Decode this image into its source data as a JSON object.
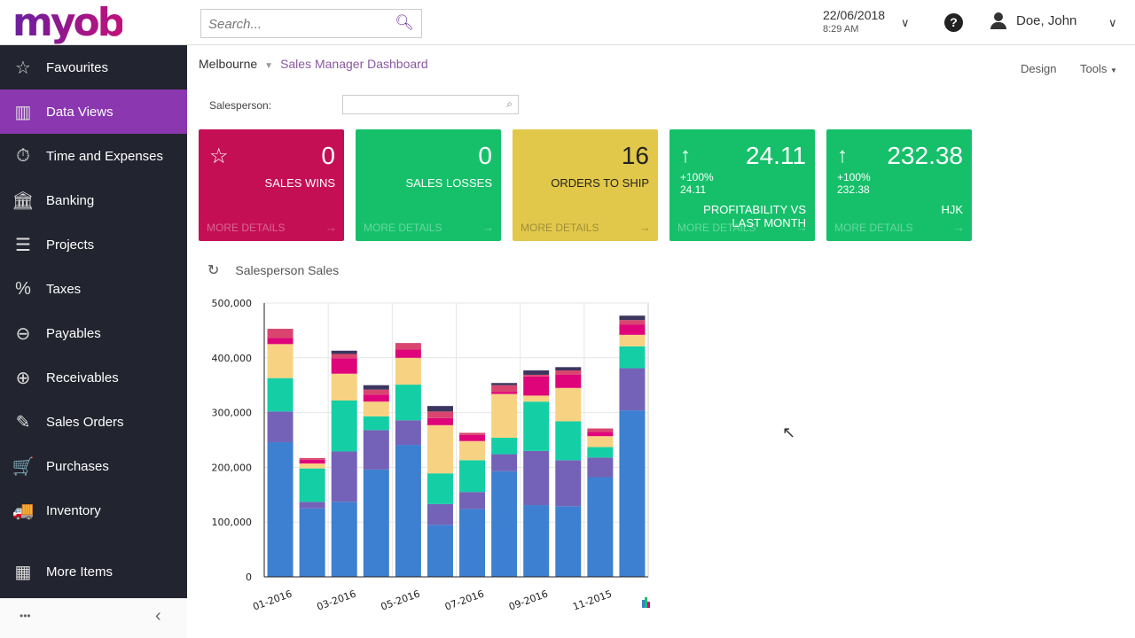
{
  "header": {
    "logo": "myob",
    "search_placeholder": "Search...",
    "date": "22/06/2018",
    "time": "8:29 AM",
    "user": "Doe, John"
  },
  "sidebar": {
    "items": [
      {
        "label": "Favourites",
        "icon": "star-icon",
        "glyph": "☆"
      },
      {
        "label": "Data Views",
        "icon": "bar-chart-icon",
        "glyph": "▥",
        "active": true
      },
      {
        "label": "Time and Expenses",
        "icon": "stopwatch-icon",
        "glyph": "⏱"
      },
      {
        "label": "Banking",
        "icon": "bank-icon",
        "glyph": "🏛"
      },
      {
        "label": "Projects",
        "icon": "projects-icon",
        "glyph": "☰"
      },
      {
        "label": "Taxes",
        "icon": "percent-icon",
        "glyph": "%"
      },
      {
        "label": "Payables",
        "icon": "minus-circle-icon",
        "glyph": "⊖"
      },
      {
        "label": "Receivables",
        "icon": "plus-circle-icon",
        "glyph": "⊕"
      },
      {
        "label": "Sales Orders",
        "icon": "edit-icon",
        "glyph": "✎"
      },
      {
        "label": "Purchases",
        "icon": "cart-icon",
        "glyph": "🛒"
      },
      {
        "label": "Inventory",
        "icon": "truck-icon",
        "glyph": "🚚"
      }
    ],
    "more": {
      "label": "More Items",
      "icon": "grid-icon",
      "glyph": "▦"
    },
    "bottom_dots": "•••",
    "collapse": "‹"
  },
  "breadcrumb": {
    "branch": "Melbourne",
    "page": "Sales Manager Dashboard"
  },
  "toolbar": {
    "design": "Design",
    "tools": "Tools"
  },
  "filter": {
    "label": "Salesperson:",
    "value": ""
  },
  "cards": [
    {
      "value": "0",
      "label": "SALES WINS",
      "more": "MORE DETAILS",
      "color": "#c40f55",
      "icon": "star-icon"
    },
    {
      "value": "0",
      "label": "SALES LOSSES",
      "more": "MORE DETAILS",
      "color": "#16c06a"
    },
    {
      "value": "16",
      "label": "ORDERS TO SHIP",
      "more": "MORE DETAILS",
      "color": "#e2c84a"
    },
    {
      "value": "24.11",
      "label": "PROFITABILITY VS LAST MONTH",
      "more": "MORE DETAILS",
      "color": "#16c06a",
      "icon": "arrow-up-icon",
      "change": "+100%",
      "prev": "24.11"
    },
    {
      "value": "232.38",
      "label": "HJK",
      "more": "MORE DETAILS",
      "color": "#16c06a",
      "icon": "arrow-up-icon",
      "change": "+100%",
      "prev": "232.38"
    }
  ],
  "chart_title": "Salesperson Sales",
  "chart_data": {
    "type": "bar",
    "stacked": true,
    "categories": [
      "01-2016",
      "",
      "03-2016",
      "",
      "05-2016",
      "",
      "07-2016",
      "",
      "09-2016",
      "",
      "11-2015",
      ""
    ],
    "ylim": [
      0,
      500000
    ],
    "yticks": [
      0,
      100000,
      200000,
      300000,
      400000,
      500000
    ],
    "ytick_labels": [
      "0",
      "100,000",
      "200,000",
      "300,000",
      "400,000",
      "500,000"
    ],
    "grid": true,
    "series": [
      {
        "color": "#3d7fd0",
        "values": [
          246000,
          125000,
          137000,
          196000,
          241000,
          95000,
          124000,
          193000,
          131000,
          129000,
          182000,
          304000
        ]
      },
      {
        "color": "#7462b8",
        "values": [
          56000,
          12000,
          92000,
          72000,
          45000,
          38000,
          31000,
          31000,
          99000,
          84000,
          36000,
          77000
        ]
      },
      {
        "color": "#14cfa5",
        "values": [
          61000,
          61000,
          93000,
          25000,
          65000,
          56000,
          58000,
          30000,
          90000,
          71000,
          19000,
          40000
        ]
      },
      {
        "color": "#f8d283",
        "values": [
          62000,
          9000,
          49000,
          27000,
          49000,
          88000,
          35000,
          80000,
          11000,
          61000,
          20000,
          21000
        ]
      },
      {
        "color": "#e0047a",
        "values": [
          11000,
          7000,
          28000,
          13000,
          15000,
          13000,
          11000,
          4000,
          35000,
          24000,
          8000,
          19000
        ]
      },
      {
        "color": "#d9456f",
        "values": [
          17000,
          3000,
          8000,
          9000,
          12000,
          12000,
          4000,
          12000,
          3000,
          8000,
          6000,
          8000
        ]
      },
      {
        "color": "#3b365e",
        "values": [
          0,
          0,
          6000,
          8000,
          0,
          10000,
          0,
          4000,
          8000,
          6000,
          0,
          8000
        ]
      }
    ]
  }
}
